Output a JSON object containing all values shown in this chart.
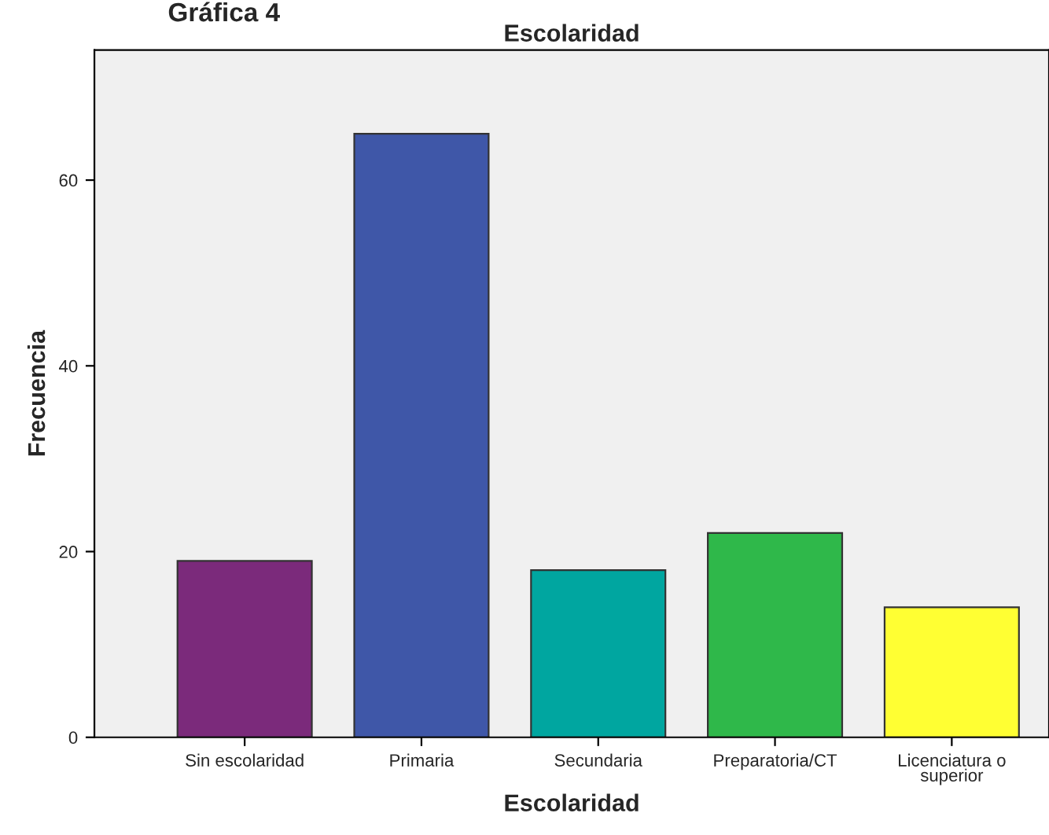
{
  "chart_data": {
    "type": "bar",
    "title": "Escolaridad",
    "xlabel": "Escolaridad",
    "ylabel": "Frecuencia",
    "annotations": [
      "Gráfica 4"
    ],
    "categories": [
      "Sin escolaridad",
      "Primaria",
      "Secundaria",
      "Preparatoria/CT",
      "Licenciatura o\nsuperior"
    ],
    "values": [
      19,
      65,
      18,
      22,
      14
    ],
    "colors": [
      "#7b2a7b",
      "#3f57a8",
      "#00a6a0",
      "#2fb84a",
      "#ffff33"
    ],
    "ylim": [
      0,
      74
    ],
    "yticks": [
      0,
      20,
      40,
      60
    ],
    "grid": false,
    "legend": false
  }
}
